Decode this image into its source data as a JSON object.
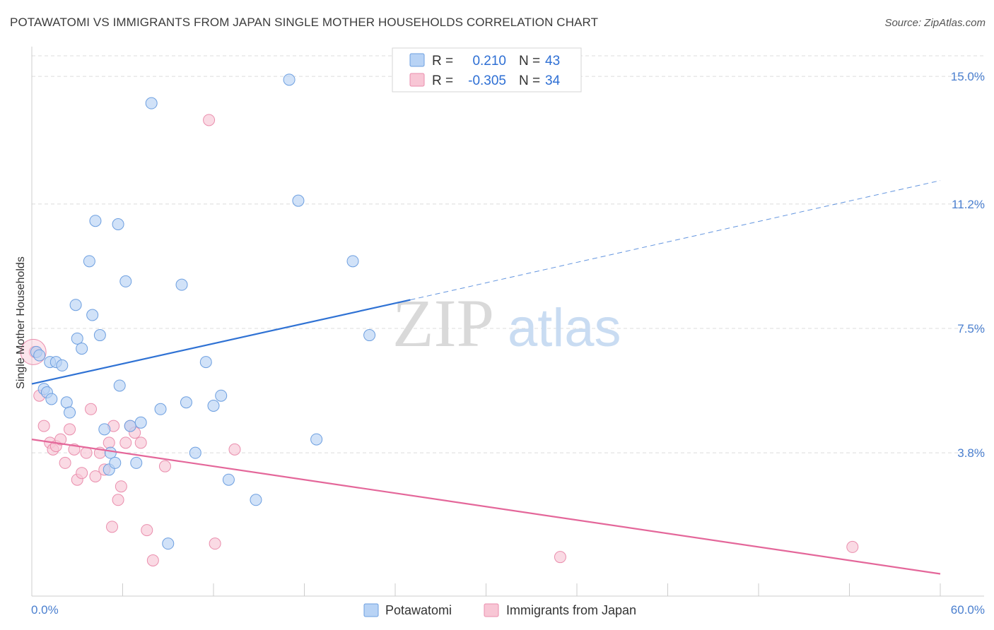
{
  "title": "POTAWATOMI VS IMMIGRANTS FROM JAPAN SINGLE MOTHER HOUSEHOLDS CORRELATION CHART",
  "source": "Source: ZipAtlas.com",
  "watermark": {
    "zip": "ZIP",
    "atlas": "atlas"
  },
  "colors": {
    "blue_fill": "#b8d3f5",
    "blue_stroke": "#6d9fe0",
    "blue_line": "#2f72d4",
    "pink_fill": "#f8c6d5",
    "pink_stroke": "#ea8ead",
    "pink_line": "#e4679a",
    "tick_text": "#4a7fcf",
    "grid": "#dcdcdc"
  },
  "legend_top": {
    "rows": [
      {
        "r_label": "R =",
        "r_value": "0.210",
        "n_label": "N =",
        "n_value": "43"
      },
      {
        "r_label": "R =",
        "r_value": "-0.305",
        "n_label": "N =",
        "n_value": "34"
      }
    ]
  },
  "chart_data": {
    "type": "scatter",
    "title": "POTAWATOMI VS IMMIGRANTS FROM JAPAN SINGLE MOTHER HOUSEHOLDS CORRELATION CHART",
    "xlabel": "",
    "ylabel": "Single Mother Households",
    "xlim": [
      0,
      60
    ],
    "ylim": [
      0,
      15.8
    ],
    "x_tick_labels": [
      "0.0%",
      "60.0%"
    ],
    "y_ticks": [
      3.8,
      7.5,
      11.2,
      15.0
    ],
    "y_tick_labels": [
      "3.8%",
      "7.5%",
      "11.2%",
      "15.0%"
    ],
    "grid": "horizontal dashed",
    "legend_position": "bottom-center",
    "series": [
      {
        "name": "Potawatomi",
        "color": "#b8d3f5",
        "r": 0.21,
        "n": 43,
        "trend": {
          "x0": 0,
          "y0": 5.85,
          "x1": 25,
          "y1": 8.35,
          "dashed_to_x": 60,
          "dashed_to_y": 11.9
        },
        "points": [
          [
            0.3,
            6.8
          ],
          [
            0.5,
            6.7
          ],
          [
            0.8,
            5.7
          ],
          [
            1.2,
            6.5
          ],
          [
            1.0,
            5.6
          ],
          [
            1.3,
            5.4
          ],
          [
            1.6,
            6.5
          ],
          [
            2.0,
            6.4
          ],
          [
            2.3,
            5.3
          ],
          [
            2.5,
            5.0
          ],
          [
            2.9,
            8.2
          ],
          [
            3.0,
            7.2
          ],
          [
            3.3,
            6.9
          ],
          [
            3.8,
            9.5
          ],
          [
            4.0,
            7.9
          ],
          [
            4.2,
            10.7
          ],
          [
            4.5,
            7.3
          ],
          [
            4.8,
            4.5
          ],
          [
            5.1,
            3.3
          ],
          [
            5.2,
            3.8
          ],
          [
            5.5,
            3.5
          ],
          [
            5.8,
            5.8
          ],
          [
            5.7,
            10.6
          ],
          [
            6.2,
            8.9
          ],
          [
            6.5,
            4.6
          ],
          [
            6.9,
            3.5
          ],
          [
            7.2,
            4.7
          ],
          [
            8.5,
            5.1
          ],
          [
            7.9,
            14.2
          ],
          [
            9.0,
            1.1
          ],
          [
            9.9,
            8.8
          ],
          [
            10.2,
            5.3
          ],
          [
            10.8,
            3.8
          ],
          [
            11.5,
            6.5
          ],
          [
            12.0,
            5.2
          ],
          [
            12.5,
            5.5
          ],
          [
            13.0,
            3.0
          ],
          [
            14.8,
            2.4
          ],
          [
            17.0,
            14.9
          ],
          [
            17.6,
            11.3
          ],
          [
            18.8,
            4.2
          ],
          [
            21.2,
            9.5
          ],
          [
            22.3,
            7.3
          ]
        ]
      },
      {
        "name": "Immigrants from Japan",
        "color": "#f8c6d5",
        "r": -0.305,
        "n": 34,
        "trend": {
          "x0": 0,
          "y0": 4.2,
          "x1": 60,
          "y1": 0.2
        },
        "points": [
          [
            0.2,
            6.8
          ],
          [
            0.5,
            5.5
          ],
          [
            0.8,
            4.6
          ],
          [
            1.2,
            4.1
          ],
          [
            1.4,
            3.9
          ],
          [
            1.6,
            4.0
          ],
          [
            1.9,
            4.2
          ],
          [
            2.2,
            3.5
          ],
          [
            2.5,
            4.5
          ],
          [
            2.8,
            3.9
          ],
          [
            3.0,
            3.0
          ],
          [
            3.3,
            3.2
          ],
          [
            3.6,
            3.8
          ],
          [
            3.9,
            5.1
          ],
          [
            4.2,
            3.1
          ],
          [
            4.5,
            3.8
          ],
          [
            4.8,
            3.3
          ],
          [
            5.1,
            4.1
          ],
          [
            5.4,
            4.6
          ],
          [
            5.7,
            2.4
          ],
          [
            5.9,
            2.8
          ],
          [
            6.2,
            4.1
          ],
          [
            6.5,
            4.6
          ],
          [
            6.8,
            4.4
          ],
          [
            7.2,
            4.1
          ],
          [
            5.3,
            1.6
          ],
          [
            7.6,
            1.5
          ],
          [
            8.0,
            0.6
          ],
          [
            8.8,
            3.4
          ],
          [
            11.7,
            13.7
          ],
          [
            12.1,
            1.1
          ],
          [
            13.4,
            3.9
          ],
          [
            34.9,
            0.7
          ],
          [
            54.2,
            1.0
          ]
        ]
      }
    ]
  },
  "legend_bottom": [
    {
      "label": "Potawatomi"
    },
    {
      "label": "Immigrants from Japan"
    }
  ]
}
